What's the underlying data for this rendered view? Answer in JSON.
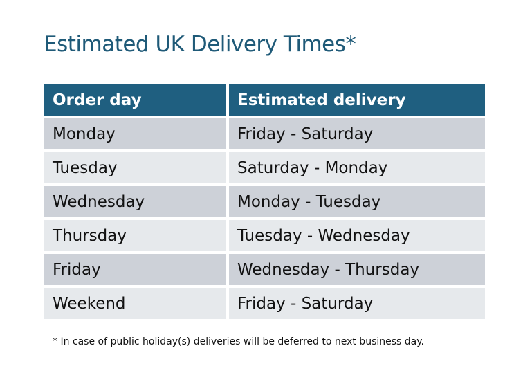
{
  "title": "Estimated UK Delivery Times*",
  "table": {
    "headers": [
      "Order day",
      "Estimated delivery"
    ],
    "rows": [
      [
        "Monday",
        "Friday - Saturday"
      ],
      [
        "Tuesday",
        "Saturday - Monday"
      ],
      [
        "Wednesday",
        "Monday - Tuesday"
      ],
      [
        "Thursday",
        "Tuesday - Wednesday"
      ],
      [
        "Friday",
        "Wednesday - Thursday"
      ],
      [
        "Weekend",
        "Friday - Saturday"
      ]
    ]
  },
  "footnote": "* In case of public holiday(s) deliveries will be deferred to next business day.",
  "colors": {
    "header": "#1f5f80",
    "row_dark": "#cdd1d8",
    "row_light": "#e6e9ec",
    "title": "#1f5a78"
  }
}
